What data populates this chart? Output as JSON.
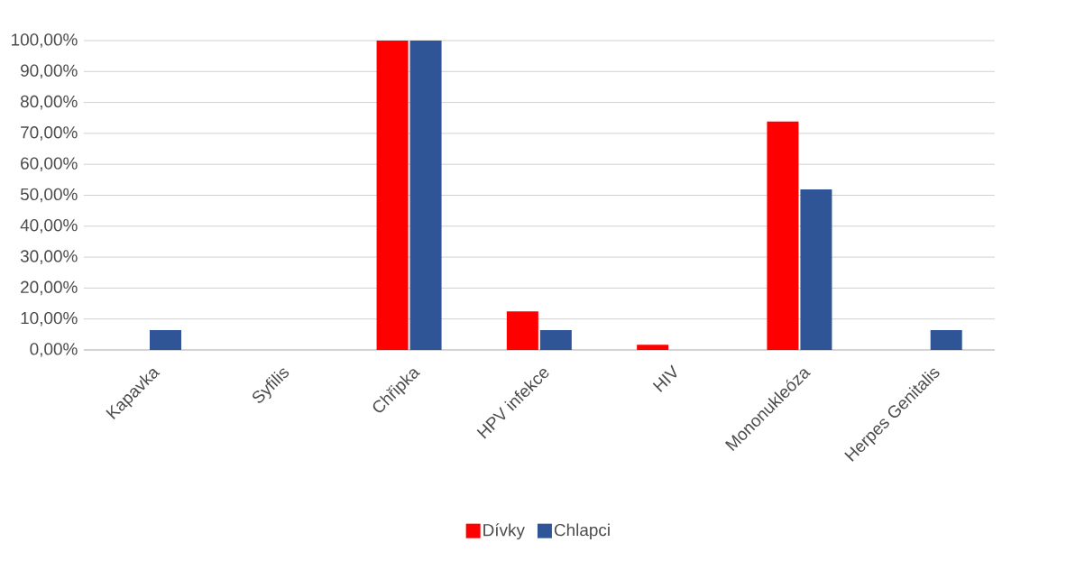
{
  "chart_data": {
    "type": "bar",
    "categories": [
      "Kapavka",
      "Syfilis",
      "Chřipka",
      "HPV infekce",
      "HIV",
      "Mononukleóza",
      "Herpes Genitalis"
    ],
    "series": [
      {
        "name": "Dívky",
        "color": "#ff0000",
        "values": [
          0,
          0,
          100,
          12.5,
          1.7,
          73.8,
          0
        ]
      },
      {
        "name": "Chlapci",
        "color": "#2f5597",
        "values": [
          6.4,
          0,
          100,
          6.4,
          0,
          51.9,
          6.4
        ]
      }
    ],
    "ylim": [
      0,
      100
    ],
    "yticks": [
      {
        "value": 0,
        "label": "0,00%"
      },
      {
        "value": 10,
        "label": "10,00%"
      },
      {
        "value": 20,
        "label": "20,00%"
      },
      {
        "value": 30,
        "label": "30,00%"
      },
      {
        "value": 40,
        "label": "40,00%"
      },
      {
        "value": 50,
        "label": "50,00%"
      },
      {
        "value": 60,
        "label": "60,00%"
      },
      {
        "value": 70,
        "label": "70,00%"
      },
      {
        "value": 80,
        "label": "80,00%"
      },
      {
        "value": 90,
        "label": "90,00%"
      },
      {
        "value": 100,
        "label": "100,00%"
      }
    ],
    "grid": "y",
    "legend": "bottom"
  }
}
